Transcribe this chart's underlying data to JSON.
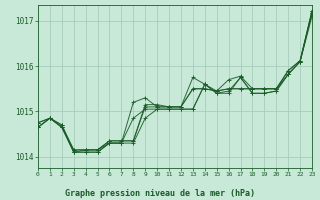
{
  "background_color": "#c8e8d8",
  "plot_bg_color": "#c8e8d8",
  "grid_color": "#a0c8b8",
  "line_color": "#1a5c28",
  "xlabel": "Graphe pression niveau de la mer (hPa)",
  "xlim": [
    0,
    23
  ],
  "ylim": [
    1013.75,
    1017.35
  ],
  "yticks": [
    1014,
    1015,
    1016,
    1017
  ],
  "xticks": [
    0,
    1,
    2,
    3,
    4,
    5,
    6,
    7,
    8,
    9,
    10,
    11,
    12,
    13,
    14,
    15,
    16,
    17,
    18,
    19,
    20,
    21,
    22,
    23
  ],
  "series": [
    [
      1014.65,
      1014.85,
      1014.65,
      1014.1,
      1014.1,
      1014.1,
      1014.3,
      1014.3,
      1014.3,
      1014.85,
      1015.05,
      1015.05,
      1015.05,
      1015.05,
      1015.6,
      1015.4,
      1015.4,
      1015.75,
      1015.4,
      1015.4,
      1015.45,
      1015.82,
      1016.1,
      1017.18
    ],
    [
      1014.65,
      1014.85,
      1014.65,
      1014.1,
      1014.1,
      1014.1,
      1014.3,
      1014.3,
      1014.85,
      1015.05,
      1015.05,
      1015.05,
      1015.05,
      1015.05,
      1015.6,
      1015.4,
      1015.45,
      1015.75,
      1015.4,
      1015.4,
      1015.45,
      1015.82,
      1016.1,
      1017.18
    ],
    [
      1014.65,
      1014.85,
      1014.65,
      1014.15,
      1014.15,
      1014.15,
      1014.35,
      1014.35,
      1014.35,
      1015.15,
      1015.15,
      1015.1,
      1015.1,
      1015.5,
      1015.5,
      1015.45,
      1015.5,
      1015.5,
      1015.5,
      1015.5,
      1015.5,
      1015.9,
      1016.12,
      1017.22
    ],
    [
      1014.75,
      1014.85,
      1014.7,
      1014.1,
      1014.15,
      1014.15,
      1014.3,
      1014.3,
      1015.2,
      1015.3,
      1015.1,
      1015.1,
      1015.1,
      1015.75,
      1015.6,
      1015.45,
      1015.7,
      1015.78,
      1015.5,
      1015.5,
      1015.5,
      1015.82,
      1016.1,
      1017.1
    ],
    [
      1014.75,
      1014.85,
      1014.7,
      1014.15,
      1014.15,
      1014.15,
      1014.35,
      1014.35,
      1014.35,
      1015.1,
      1015.1,
      1015.1,
      1015.1,
      1015.5,
      1015.5,
      1015.45,
      1015.5,
      1015.5,
      1015.5,
      1015.5,
      1015.5,
      1015.9,
      1016.12,
      1017.22
    ]
  ]
}
